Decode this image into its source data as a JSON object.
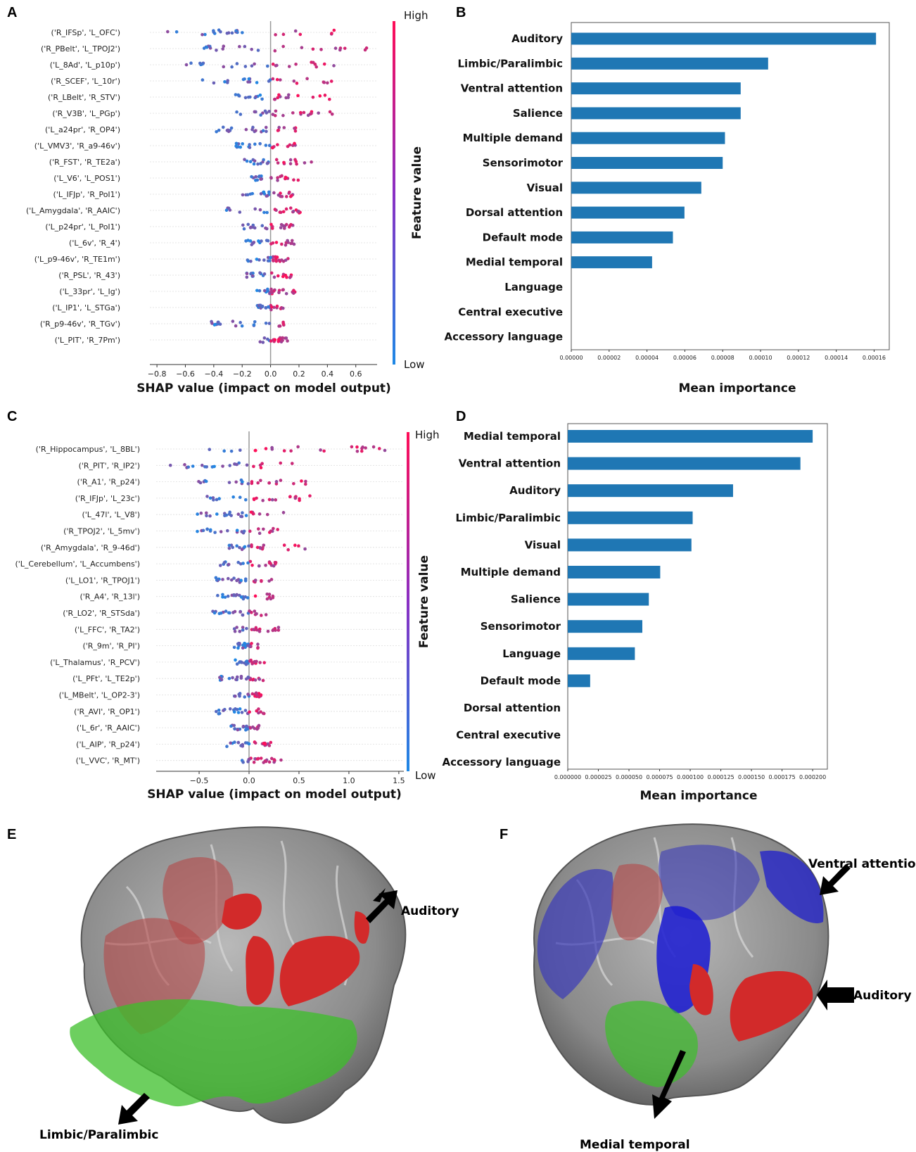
{
  "panel_labels": {
    "A": "A",
    "B": "B",
    "C": "C",
    "D": "D",
    "E": "E",
    "F": "F"
  },
  "colors": {
    "bar": "#1f77b4",
    "low": "#1e88e5",
    "high": "#ff0d57"
  },
  "chart_data": [
    {
      "id": "A",
      "type": "scatter",
      "subtype": "shap-beeswarm",
      "xlabel": "SHAP value (impact on model output)",
      "xlim": [
        -0.85,
        0.75
      ],
      "xticks": [
        -0.8,
        -0.6,
        -0.4,
        -0.2,
        0.0,
        0.2,
        0.4,
        0.6
      ],
      "xtick_labels": [
        "−0.8",
        "−0.6",
        "−0.4",
        "−0.2",
        "0.0",
        "0.2",
        "0.4",
        "0.6"
      ],
      "colorbar": {
        "title": "Feature value",
        "high": "High",
        "low": "Low"
      },
      "features": [
        "('R_IFSp', 'L_OFC')",
        "('R_PBelt', 'L_TPOJ2')",
        "('L_8Ad', 'L_p10p')",
        "('R_SCEF', 'L_10r')",
        "('R_LBelt', 'R_STV')",
        "('R_V3B', 'L_PGp')",
        "('L_a24pr', 'R_OP4')",
        "('L_VMV3', 'R_a9-46v')",
        "('R_FST', 'R_TE2a')",
        "('L_V6', 'L_POS1')",
        "('L_IFJp', 'R_PoI1')",
        "('L_Amygdala', 'R_AAIC')",
        "('L_p24pr', 'L_PoI1')",
        "('L_6v', 'R_4')",
        "('L_p9-46v', 'R_TE1m')",
        "('R_PSL', 'R_43')",
        "('L_33pr', 'L_Ig')",
        "('L_IP1', 'L_STGa')",
        "('R_p9-46v', 'R_TGv')",
        "('L_PIT', 'R_7Pm')"
      ],
      "range": [
        [
          -0.78,
          0.6
        ],
        [
          -0.47,
          0.7
        ],
        [
          -0.62,
          0.47
        ],
        [
          -0.48,
          0.5
        ],
        [
          -0.3,
          0.45
        ],
        [
          -0.25,
          0.47
        ],
        [
          -0.47,
          0.2
        ],
        [
          -0.25,
          0.2
        ],
        [
          -0.2,
          0.3
        ],
        [
          -0.15,
          0.2
        ],
        [
          -0.2,
          0.2
        ],
        [
          -0.42,
          0.22
        ],
        [
          -0.2,
          0.2
        ],
        [
          -0.18,
          0.18
        ],
        [
          -0.18,
          0.15
        ],
        [
          -0.17,
          0.15
        ],
        [
          -0.1,
          0.18
        ],
        [
          -0.1,
          0.1
        ],
        [
          -0.42,
          0.1
        ],
        [
          -0.08,
          0.12
        ]
      ]
    },
    {
      "id": "B",
      "type": "bar",
      "orientation": "horizontal",
      "xlabel": "Mean importance",
      "xlim": [
        0,
        0.000168
      ],
      "xticks": [
        0,
        2e-05,
        4e-05,
        6e-05,
        8e-05,
        0.0001,
        0.00012,
        0.00014,
        0.00016
      ],
      "xtick_labels": [
        "0.00000",
        "0.00002",
        "0.00004",
        "0.00006",
        "0.00008",
        "0.00010",
        "0.00012",
        "0.00014",
        "0.00016"
      ],
      "categories": [
        "Auditory",
        "Limbic/Paralimbic",
        "Ventral attention",
        "Salience",
        "Multiple demand",
        "Sensorimotor",
        "Visual",
        "Dorsal attention",
        "Default mode",
        "Medial temporal",
        "Language",
        "Central executive",
        "Accessory language"
      ],
      "values": [
        0.000161,
        0.000104,
        8.95e-05,
        8.95e-05,
        8.12e-05,
        8e-05,
        6.87e-05,
        5.98e-05,
        5.37e-05,
        4.27e-05,
        0,
        0,
        0
      ]
    },
    {
      "id": "C",
      "type": "scatter",
      "subtype": "shap-beeswarm",
      "xlabel": "SHAP value (impact on model output)",
      "xlim": [
        -0.93,
        1.55
      ],
      "xticks": [
        -0.5,
        0.0,
        0.5,
        1.0,
        1.5
      ],
      "xtick_labels": [
        "−0.5",
        "0.0",
        "0.5",
        "1.0",
        "1.5"
      ],
      "colorbar": {
        "title": "Feature value",
        "high": "High",
        "low": "Low"
      },
      "features": [
        "('R_Hippocampus', 'L_8BL')",
        "('R_PIT', 'R_IP2')",
        "('R_A1', 'R_p24')",
        "('R_IFJp', 'L_23c')",
        "('L_47l', 'L_V8')",
        "('R_TPOJ2', 'L_5mv')",
        "('R_Amygdala', 'R_9-46d')",
        "('L_Cerebellum', 'L_Accumbens')",
        "('L_LO1', 'R_TPOJ1')",
        "('R_A4', 'R_13l')",
        "('R_LO2', 'R_STSda')",
        "('L_FFC', 'R_TA2')",
        "('R_9m', 'R_PI')",
        "('L_Thalamus', 'R_PCV')",
        "('L_PFt', 'L_TE2p')",
        "('L_MBelt', 'L_OP2-3')",
        "('R_AVI', 'R_OP1')",
        "('L_6r', 'R_AAIC')",
        "('L_AIP', 'R_p24')",
        "('L_VVC', 'R_MT')"
      ],
      "range": [
        [
          -0.55,
          1.45
        ],
        [
          -0.8,
          0.45
        ],
        [
          -0.52,
          0.6
        ],
        [
          -0.5,
          0.62
        ],
        [
          -0.58,
          0.38
        ],
        [
          -0.55,
          0.32
        ],
        [
          -0.35,
          0.58
        ],
        [
          -0.3,
          0.28
        ],
        [
          -0.35,
          0.28
        ],
        [
          -0.38,
          0.3
        ],
        [
          -0.38,
          0.2
        ],
        [
          -0.17,
          0.3
        ],
        [
          -0.15,
          0.12
        ],
        [
          -0.15,
          0.18
        ],
        [
          -0.32,
          0.15
        ],
        [
          -0.15,
          0.12
        ],
        [
          -0.35,
          0.15
        ],
        [
          -0.2,
          0.12
        ],
        [
          -0.28,
          0.22
        ],
        [
          -0.08,
          0.35
        ]
      ]
    },
    {
      "id": "D",
      "type": "bar",
      "orientation": "horizontal",
      "xlabel": "Mean importance",
      "xlim": [
        0,
        0.000212
      ],
      "xticks": [
        0,
        2.5e-05,
        5e-05,
        7.5e-05,
        0.0001,
        0.000125,
        0.00015,
        0.000175,
        0.0002
      ],
      "xtick_labels": [
        "0.000000",
        "0.000025",
        "0.000050",
        "0.000075",
        "0.000100",
        "0.000125",
        "0.000150",
        "0.000175",
        "0.000200"
      ],
      "categories": [
        "Medial temporal",
        "Ventral attention",
        "Auditory",
        "Limbic/Paralimbic",
        "Visual",
        "Multiple demand",
        "Salience",
        "Sensorimotor",
        "Language",
        "Default mode",
        "Dorsal attention",
        "Central executive",
        "Accessory language"
      ],
      "values": [
        0.0002,
        0.00019,
        0.000135,
        0.000102,
        0.000101,
        7.55e-05,
        6.62e-05,
        6.09e-05,
        5.48e-05,
        1.83e-05,
        0,
        0,
        0
      ]
    }
  ],
  "brains": {
    "E": {
      "labels": [
        "Auditory",
        "Limbic/Paralimbic"
      ]
    },
    "F": {
      "labels": [
        "Ventral attention",
        "Auditory",
        "Medial temporal"
      ]
    }
  }
}
